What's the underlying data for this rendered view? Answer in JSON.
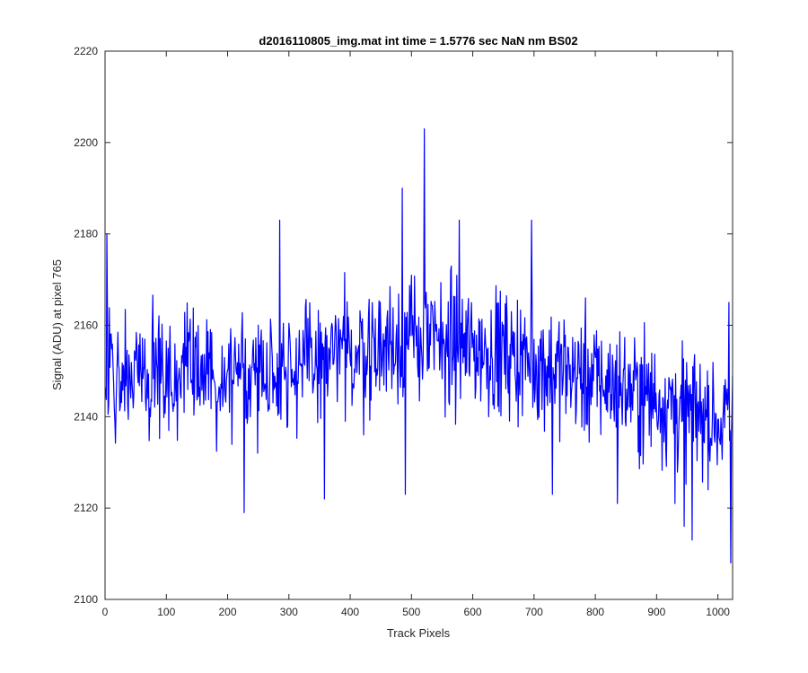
{
  "chart_data": {
    "type": "line",
    "title": "d2016110805_img.mat int time = 1.5776 sec  NaN nm BS02",
    "xlabel": "Track Pixels",
    "ylabel": "Signal (ADU) at pixel 765",
    "xlim": [
      0,
      1024
    ],
    "ylim": [
      2100,
      2220
    ],
    "xticks": [
      0,
      100,
      200,
      300,
      400,
      500,
      600,
      700,
      800,
      900,
      1000
    ],
    "yticks": [
      2100,
      2120,
      2140,
      2160,
      2180,
      2200,
      2220
    ],
    "xtick_labels": [
      "0",
      "100",
      "200",
      "300",
      "400",
      "500",
      "600",
      "700",
      "800",
      "900",
      "1000"
    ],
    "ytick_labels": [
      "2100",
      "2120",
      "2140",
      "2160",
      "2180",
      "2200",
      "2220"
    ],
    "grid": false,
    "legend": null,
    "series": [
      {
        "name": "",
        "color": "#0000ff",
        "x_start": 1,
        "x_step": 1,
        "count": 1024,
        "values_note_excluded": true,
        "trend": {
          "x": [
            1,
            200,
            350,
            500,
            650,
            800,
            900,
            1024
          ],
          "y": [
            2150,
            2149,
            2152,
            2157,
            2154,
            2148,
            2144,
            2138
          ]
        },
        "noise_std": 9,
        "features": [
          {
            "x": 3,
            "y": 2180
          },
          {
            "x": 227,
            "y": 2119
          },
          {
            "x": 285,
            "y": 2183
          },
          {
            "x": 358,
            "y": 2122
          },
          {
            "x": 485,
            "y": 2190
          },
          {
            "x": 490,
            "y": 2123
          },
          {
            "x": 521,
            "y": 2203
          },
          {
            "x": 578,
            "y": 2183
          },
          {
            "x": 696,
            "y": 2183
          },
          {
            "x": 730,
            "y": 2123
          },
          {
            "x": 836,
            "y": 2121
          },
          {
            "x": 930,
            "y": 2121
          },
          {
            "x": 945,
            "y": 2116
          },
          {
            "x": 958,
            "y": 2113
          },
          {
            "x": 1018,
            "y": 2165
          },
          {
            "x": 1021,
            "y": 2108
          }
        ]
      }
    ]
  }
}
